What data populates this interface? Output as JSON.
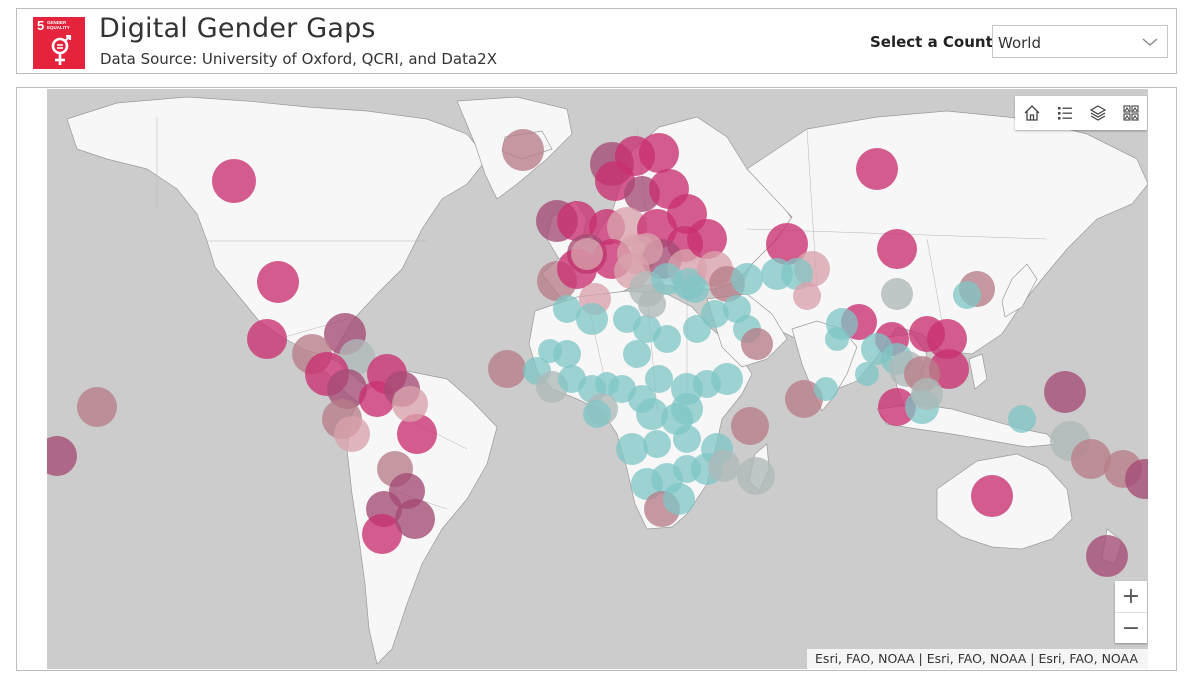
{
  "header": {
    "sdg_number": "5",
    "sdg_label": "GENDER EQUALITY",
    "title": "Digital Gender Gaps",
    "subtitle": "Data Source: University of Oxford, QCRI, and Data2X",
    "country_label": "Select a Country:",
    "country_value": "World",
    "sdg_color": "#e5233d"
  },
  "map": {
    "tools": [
      "home-icon",
      "legend-icon",
      "layers-icon",
      "basemap-gallery-icon"
    ],
    "zoom_in": "+",
    "zoom_out": "−",
    "attribution": "Esri, FAO, NOAA | Esri, FAO, NOAA | Esri, FAO, NOAA",
    "colors": {
      "water": "#cccccc",
      "land": "#f7f7f7",
      "magenta": "#c9306f",
      "mauve": "#a44a73",
      "dusty_rose": "#b77d89",
      "pink": "#d8a1ac",
      "grey": "#b0b8b8",
      "teal": "#7fc5c6"
    }
  }
}
